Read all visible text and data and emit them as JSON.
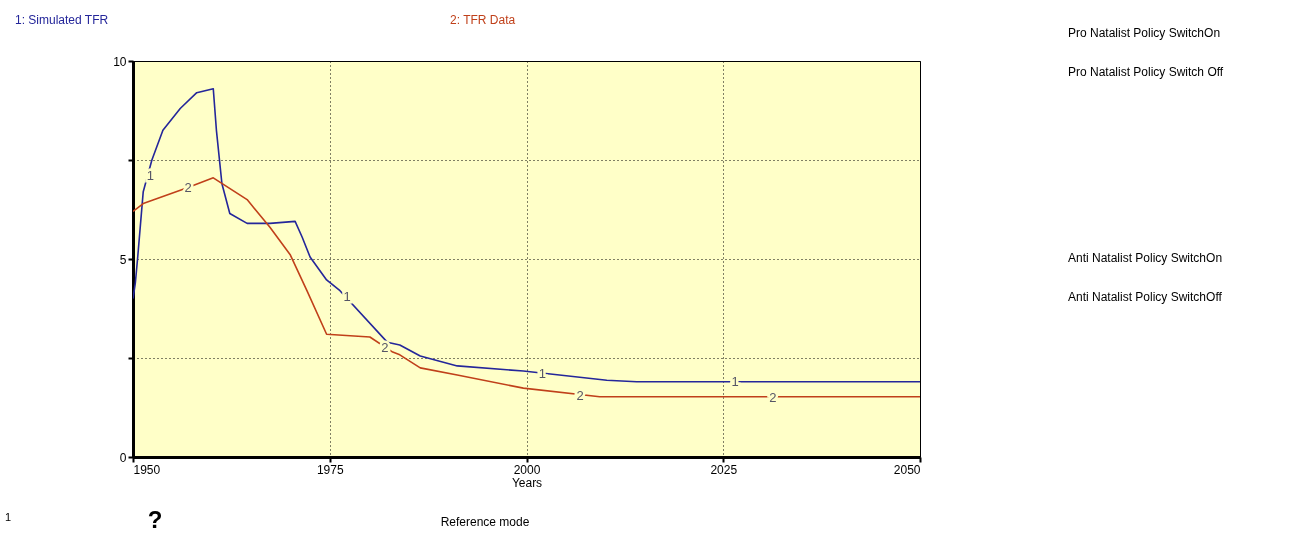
{
  "chart_data": {
    "type": "line",
    "xlabel": "Years",
    "legend": "top",
    "grid": true,
    "marker": "none",
    "line_style": "solid",
    "xlim": [
      1950,
      2050
    ],
    "xticks": [
      1950,
      1975,
      2000,
      2025,
      2050
    ],
    "ylim": [
      0,
      10
    ],
    "yticks": [
      0,
      {
        "value": 2.5,
        "label": null
      },
      5,
      {
        "value": 7.5,
        "label": null
      },
      10
    ],
    "series": [
      {
        "name": "1: Simulated TFR",
        "color": "#24269a",
        "x": [
          1950,
          1950.3,
          1950.6,
          1951.3,
          1952.4,
          1953.8,
          1956,
          1958.1,
          1960.2,
          1960.6,
          1961.3,
          1962.3,
          1964.5,
          1967.4,
          1970.6,
          1971.5,
          1972.5,
          1974.6,
          1976.3,
          1982.3,
          1983.9,
          1986.5,
          1991.2,
          1999.6,
          2010.2,
          2014,
          2050
        ],
        "values": [
          4.0,
          4.4,
          5.05,
          6.7,
          7.5,
          8.25,
          8.8,
          9.2,
          9.3,
          8.25,
          6.9,
          6.15,
          5.9,
          5.9,
          5.95,
          5.55,
          5.05,
          4.47,
          4.2,
          2.9,
          2.83,
          2.55,
          2.3,
          2.17,
          1.94,
          1.9,
          1.9
        ]
      },
      {
        "name": "2: TFR Data",
        "color": "#c0401a",
        "x": [
          1950,
          1951.3,
          1956.9,
          1960.2,
          1964.5,
          1967.4,
          1970,
          1972.1,
          1974.6,
          1980.1,
          1983,
          1983.9,
          1986.5,
          1991.2,
          1999.6,
          2009.3,
          2050
        ],
        "values": [
          6.2,
          6.4,
          6.8,
          7.05,
          6.5,
          5.8,
          5.1,
          4.2,
          3.1,
          3.03,
          2.65,
          2.58,
          2.25,
          2.07,
          1.74,
          1.52,
          1.52
        ]
      }
    ],
    "annotations": [
      "Pro Natalist Policy SwitchOn",
      "Pro Natalist Policy Switch Off",
      "Anti Natalist Policy SwitchOn",
      "Anti Natalist Policy SwitchOff",
      "1",
      "?",
      "Reference mode",
      {
        "text": "1",
        "x": 1952.2,
        "y": 7.1
      },
      {
        "text": "1",
        "x": 1977.2,
        "y": 4.05
      },
      {
        "text": "1",
        "x": 2002,
        "y": 2.1
      },
      {
        "text": "1",
        "x": 2026.5,
        "y": 1.9
      },
      {
        "text": "2",
        "x": 1957,
        "y": 6.8
      },
      {
        "text": "2",
        "x": 1982,
        "y": 2.75
      },
      {
        "text": "2",
        "x": 2006.8,
        "y": 1.55
      },
      {
        "text": "2",
        "x": 2031.3,
        "y": 1.5
      }
    ]
  }
}
